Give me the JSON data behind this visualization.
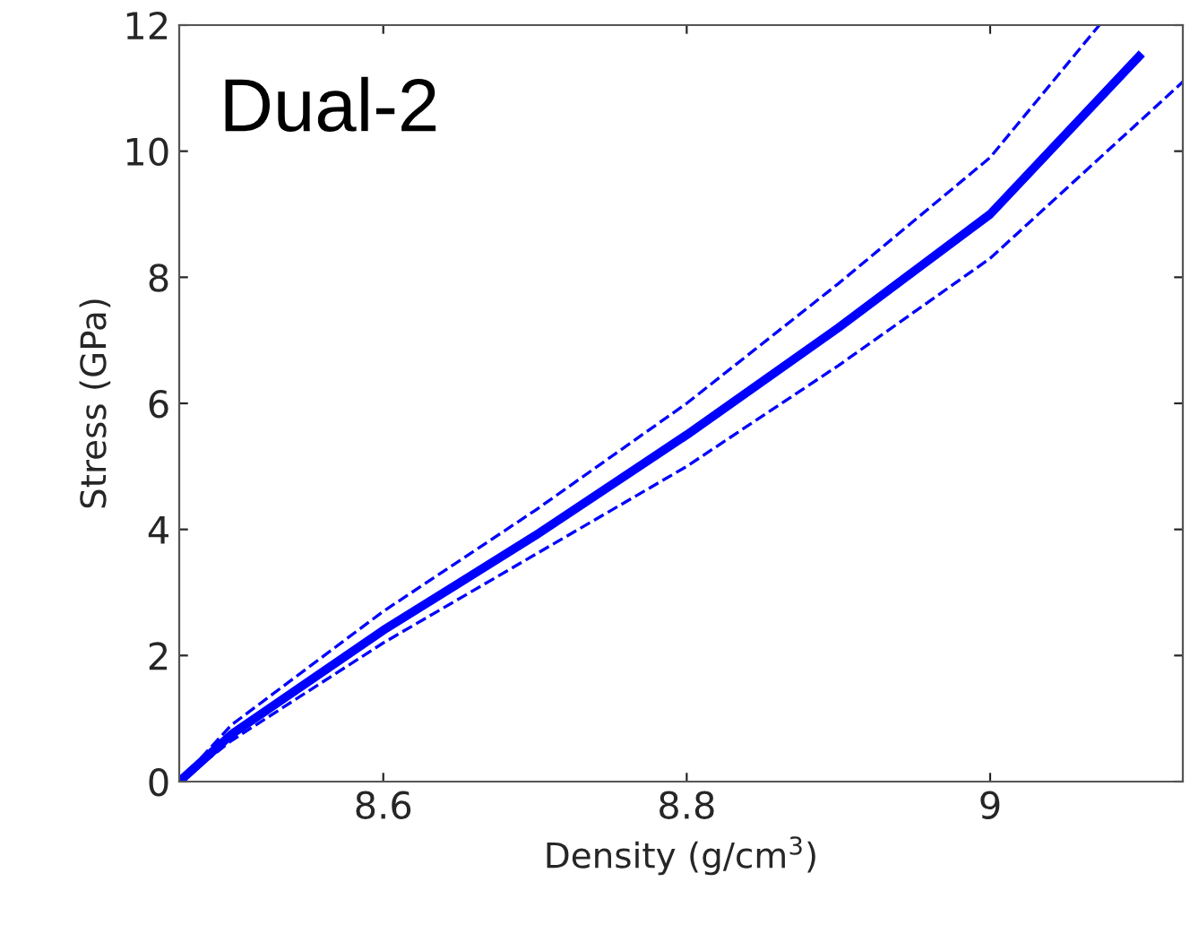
{
  "chart_data": {
    "type": "line",
    "xlabel": "Density (g/cm$^{3}$)",
    "ylabel": "Stress (GPa)",
    "annotations": [
      "Dual-2"
    ],
    "xlim": [
      8.4655,
      9.127
    ],
    "ylim": [
      0,
      12
    ],
    "xticks": [
      8.6,
      8.8,
      9
    ],
    "yticks": [
      0,
      2,
      4,
      6,
      8,
      10,
      12
    ],
    "grid": false,
    "marker": "none",
    "series": [
      {
        "color": "#0000ff",
        "line_style": "solid",
        "x": [
          8.4655,
          8.5,
          8.6,
          8.7,
          8.8,
          8.9,
          9.0,
          9.098
        ],
        "values": [
          0,
          0.75,
          2.4,
          3.9,
          5.5,
          7.2,
          9.0,
          11.5
        ]
      },
      {
        "color": "#0000ff",
        "line_style": "dashed",
        "x": [
          8.4655,
          8.5,
          8.6,
          8.7,
          8.8,
          8.9,
          9.0,
          9.072
        ],
        "values": [
          0,
          0.9,
          2.7,
          4.3,
          6.0,
          7.9,
          9.9,
          12
        ]
      },
      {
        "color": "#0000ff",
        "line_style": "dashed",
        "x": [
          8.4655,
          8.5,
          8.6,
          8.7,
          8.8,
          8.9,
          9.0,
          9.127
        ],
        "values": [
          0,
          0.65,
          2.2,
          3.6,
          5.0,
          6.6,
          8.3,
          11.1
        ]
      }
    ]
  }
}
